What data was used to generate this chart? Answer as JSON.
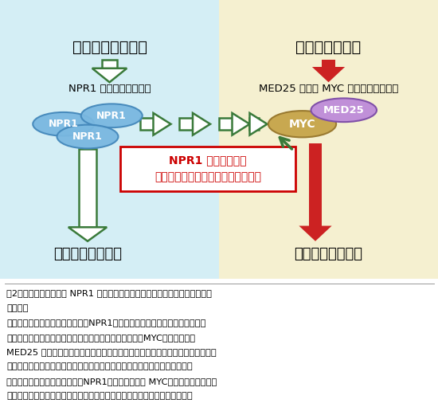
{
  "bg_left_color": "#d4eef5",
  "bg_right_color": "#f5f0d0",
  "left_title": "病原微生物の感染",
  "right_title": "昆虫による摘食",
  "left_subtitle": "NPR1 タンパク質の蓄積",
  "right_subtitle": "MED25 による MYC 転写因子の活性化",
  "left_bottom_label": "病害抵抗性の促進",
  "right_bottom_label": "虫害抵抗性の促進",
  "npr1_color": "#7ab8e0",
  "npr1_edge": "#4488bb",
  "myc_color": "#c8a850",
  "myc_edge": "#9a7a30",
  "med25_color": "#c090d8",
  "med25_edge": "#8050a8",
  "arrow_green": "#3a7a3a",
  "arrow_red": "#cc2222",
  "highlight_text": "NPR1 タンパク質が\n虫害抵抗性を陀害することを発見！",
  "highlight_text_color": "#cc0000",
  "caption_line1": "図2．　植物の免疫系が NPR1 タンパク質を介して虫害防御システムを陀害す",
  "caption_line2": "るモデル",
  "caption_line3": "植物に病害微生物が感染すると、NPR1　タンパク質が蓄積し、病害抵抗性を",
  "caption_line4": "促進します（左図）。一方、昆虫が植物を摘食すると、MYC　転写因子と",
  "caption_line5": "MED25 タンパク質が相互作用することで虫害抵抗性が促進されます（右図）。",
  "caption_line6": "通常、この虫害抵抗性によって昆虫の被害は軽減されますが、植物が同時に",
  "caption_line7": "病原微生物に感染していると、NPR1　タンパク質は MYC　転写因子と相互作",
  "caption_line8": "用することで、この虫害抵抗性を強く抑制することが明らかになりました。"
}
